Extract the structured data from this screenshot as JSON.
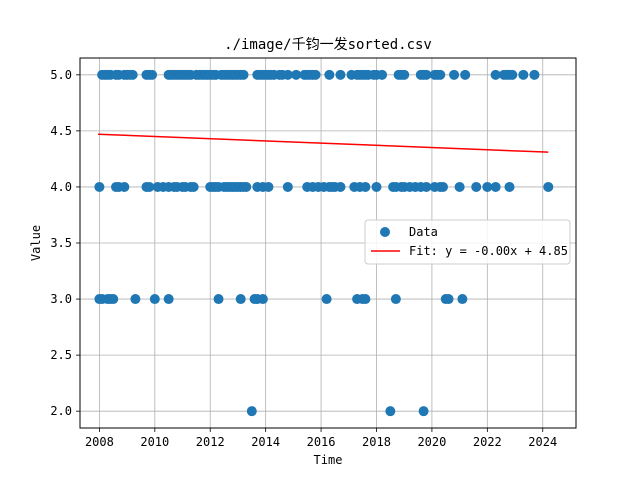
{
  "chart_data": {
    "type": "scatter",
    "title": "./image/千钧一发sorted.csv",
    "xlabel": "Time",
    "ylabel": "Value",
    "xlim": [
      2007.3,
      2025.2
    ],
    "ylim": [
      1.85,
      5.15
    ],
    "x_ticks": [
      "2008",
      "2010",
      "2012",
      "2014",
      "2016",
      "2018",
      "2020",
      "2022",
      "2024"
    ],
    "y_ticks": [
      "2.0",
      "2.5",
      "3.0",
      "3.5",
      "4.0",
      "4.5",
      "5.0"
    ],
    "grid": true,
    "legend_position": "center-right",
    "series": [
      {
        "name": "Data",
        "kind": "scatter",
        "color": "#1f77b4",
        "points": [
          [
            2008.1,
            5
          ],
          [
            2008.2,
            5
          ],
          [
            2008.3,
            5
          ],
          [
            2008.4,
            5
          ],
          [
            2008.6,
            5
          ],
          [
            2008.7,
            5
          ],
          [
            2008.9,
            5
          ],
          [
            2009.0,
            5
          ],
          [
            2009.1,
            5
          ],
          [
            2009.2,
            5
          ],
          [
            2009.7,
            5
          ],
          [
            2009.8,
            5
          ],
          [
            2009.9,
            5
          ],
          [
            2010.5,
            5
          ],
          [
            2010.6,
            5
          ],
          [
            2010.7,
            5
          ],
          [
            2010.8,
            5
          ],
          [
            2010.9,
            5
          ],
          [
            2011.0,
            5
          ],
          [
            2011.1,
            5
          ],
          [
            2011.2,
            5
          ],
          [
            2011.3,
            5
          ],
          [
            2011.5,
            5
          ],
          [
            2011.6,
            5
          ],
          [
            2011.7,
            5
          ],
          [
            2011.8,
            5
          ],
          [
            2011.9,
            5
          ],
          [
            2012.0,
            5
          ],
          [
            2012.1,
            5
          ],
          [
            2012.2,
            5
          ],
          [
            2012.4,
            5
          ],
          [
            2012.5,
            5
          ],
          [
            2012.6,
            5
          ],
          [
            2012.7,
            5
          ],
          [
            2012.8,
            5
          ],
          [
            2012.9,
            5
          ],
          [
            2013.0,
            5
          ],
          [
            2013.1,
            5
          ],
          [
            2013.2,
            5
          ],
          [
            2013.7,
            5
          ],
          [
            2013.8,
            5
          ],
          [
            2013.9,
            5
          ],
          [
            2014.0,
            5
          ],
          [
            2014.1,
            5
          ],
          [
            2014.2,
            5
          ],
          [
            2014.3,
            5
          ],
          [
            2014.5,
            5
          ],
          [
            2014.6,
            5
          ],
          [
            2014.8,
            5
          ],
          [
            2015.1,
            5
          ],
          [
            2015.4,
            5
          ],
          [
            2015.5,
            5
          ],
          [
            2015.6,
            5
          ],
          [
            2015.7,
            5
          ],
          [
            2015.8,
            5
          ],
          [
            2016.3,
            5
          ],
          [
            2016.7,
            5
          ],
          [
            2017.1,
            5
          ],
          [
            2017.3,
            5
          ],
          [
            2017.4,
            5
          ],
          [
            2017.5,
            5
          ],
          [
            2017.6,
            5
          ],
          [
            2017.7,
            5
          ],
          [
            2017.9,
            5
          ],
          [
            2018.0,
            5
          ],
          [
            2018.2,
            5
          ],
          [
            2018.8,
            5
          ],
          [
            2018.9,
            5
          ],
          [
            2019.0,
            5
          ],
          [
            2019.6,
            5
          ],
          [
            2019.7,
            5
          ],
          [
            2019.8,
            5
          ],
          [
            2020.1,
            5
          ],
          [
            2020.2,
            5
          ],
          [
            2020.3,
            5
          ],
          [
            2020.8,
            5
          ],
          [
            2021.2,
            5
          ],
          [
            2022.3,
            5
          ],
          [
            2022.6,
            5
          ],
          [
            2022.7,
            5
          ],
          [
            2022.8,
            5
          ],
          [
            2022.9,
            5
          ],
          [
            2023.3,
            5
          ],
          [
            2023.7,
            5
          ],
          [
            2008.0,
            4
          ],
          [
            2008.6,
            4
          ],
          [
            2008.7,
            4
          ],
          [
            2008.9,
            4
          ],
          [
            2009.7,
            4
          ],
          [
            2009.8,
            4
          ],
          [
            2010.1,
            4
          ],
          [
            2010.3,
            4
          ],
          [
            2010.5,
            4
          ],
          [
            2010.7,
            4
          ],
          [
            2010.8,
            4
          ],
          [
            2011.0,
            4
          ],
          [
            2011.1,
            4
          ],
          [
            2011.3,
            4
          ],
          [
            2011.4,
            4
          ],
          [
            2012.0,
            4
          ],
          [
            2012.1,
            4
          ],
          [
            2012.2,
            4
          ],
          [
            2012.3,
            4
          ],
          [
            2012.5,
            4
          ],
          [
            2012.6,
            4
          ],
          [
            2012.7,
            4
          ],
          [
            2012.8,
            4
          ],
          [
            2012.9,
            4
          ],
          [
            2013.0,
            4
          ],
          [
            2013.1,
            4
          ],
          [
            2013.2,
            4
          ],
          [
            2013.3,
            4
          ],
          [
            2013.7,
            4
          ],
          [
            2013.9,
            4
          ],
          [
            2014.1,
            4
          ],
          [
            2014.8,
            4
          ],
          [
            2015.5,
            4
          ],
          [
            2015.7,
            4
          ],
          [
            2015.9,
            4
          ],
          [
            2016.1,
            4
          ],
          [
            2016.3,
            4
          ],
          [
            2016.4,
            4
          ],
          [
            2016.5,
            4
          ],
          [
            2016.7,
            4
          ],
          [
            2017.2,
            4
          ],
          [
            2017.4,
            4
          ],
          [
            2017.6,
            4
          ],
          [
            2018.0,
            4
          ],
          [
            2018.6,
            4
          ],
          [
            2018.7,
            4
          ],
          [
            2018.9,
            4
          ],
          [
            2019.0,
            4
          ],
          [
            2019.2,
            4
          ],
          [
            2019.4,
            4
          ],
          [
            2019.6,
            4
          ],
          [
            2019.8,
            4
          ],
          [
            2020.1,
            4
          ],
          [
            2020.3,
            4
          ],
          [
            2020.4,
            4
          ],
          [
            2021.0,
            4
          ],
          [
            2021.6,
            4
          ],
          [
            2022.0,
            4
          ],
          [
            2022.3,
            4
          ],
          [
            2022.8,
            4
          ],
          [
            2024.2,
            4
          ],
          [
            2008.0,
            3
          ],
          [
            2008.1,
            3
          ],
          [
            2008.3,
            3
          ],
          [
            2008.4,
            3
          ],
          [
            2008.5,
            3
          ],
          [
            2009.3,
            3
          ],
          [
            2010.0,
            3
          ],
          [
            2010.5,
            3
          ],
          [
            2012.3,
            3
          ],
          [
            2013.1,
            3
          ],
          [
            2013.6,
            3
          ],
          [
            2013.7,
            3
          ],
          [
            2013.9,
            3
          ],
          [
            2016.2,
            3
          ],
          [
            2017.3,
            3
          ],
          [
            2017.5,
            3
          ],
          [
            2017.6,
            3
          ],
          [
            2018.7,
            3
          ],
          [
            2020.5,
            3
          ],
          [
            2020.6,
            3
          ],
          [
            2021.1,
            3
          ],
          [
            2013.5,
            2
          ],
          [
            2018.5,
            2
          ],
          [
            2019.7,
            2
          ]
        ]
      },
      {
        "name": "Fit: y = -0.00x + 4.85",
        "kind": "line",
        "color": "#ff0000",
        "points": [
          [
            2007.95,
            4.47
          ],
          [
            2024.2,
            4.31
          ]
        ]
      }
    ]
  }
}
